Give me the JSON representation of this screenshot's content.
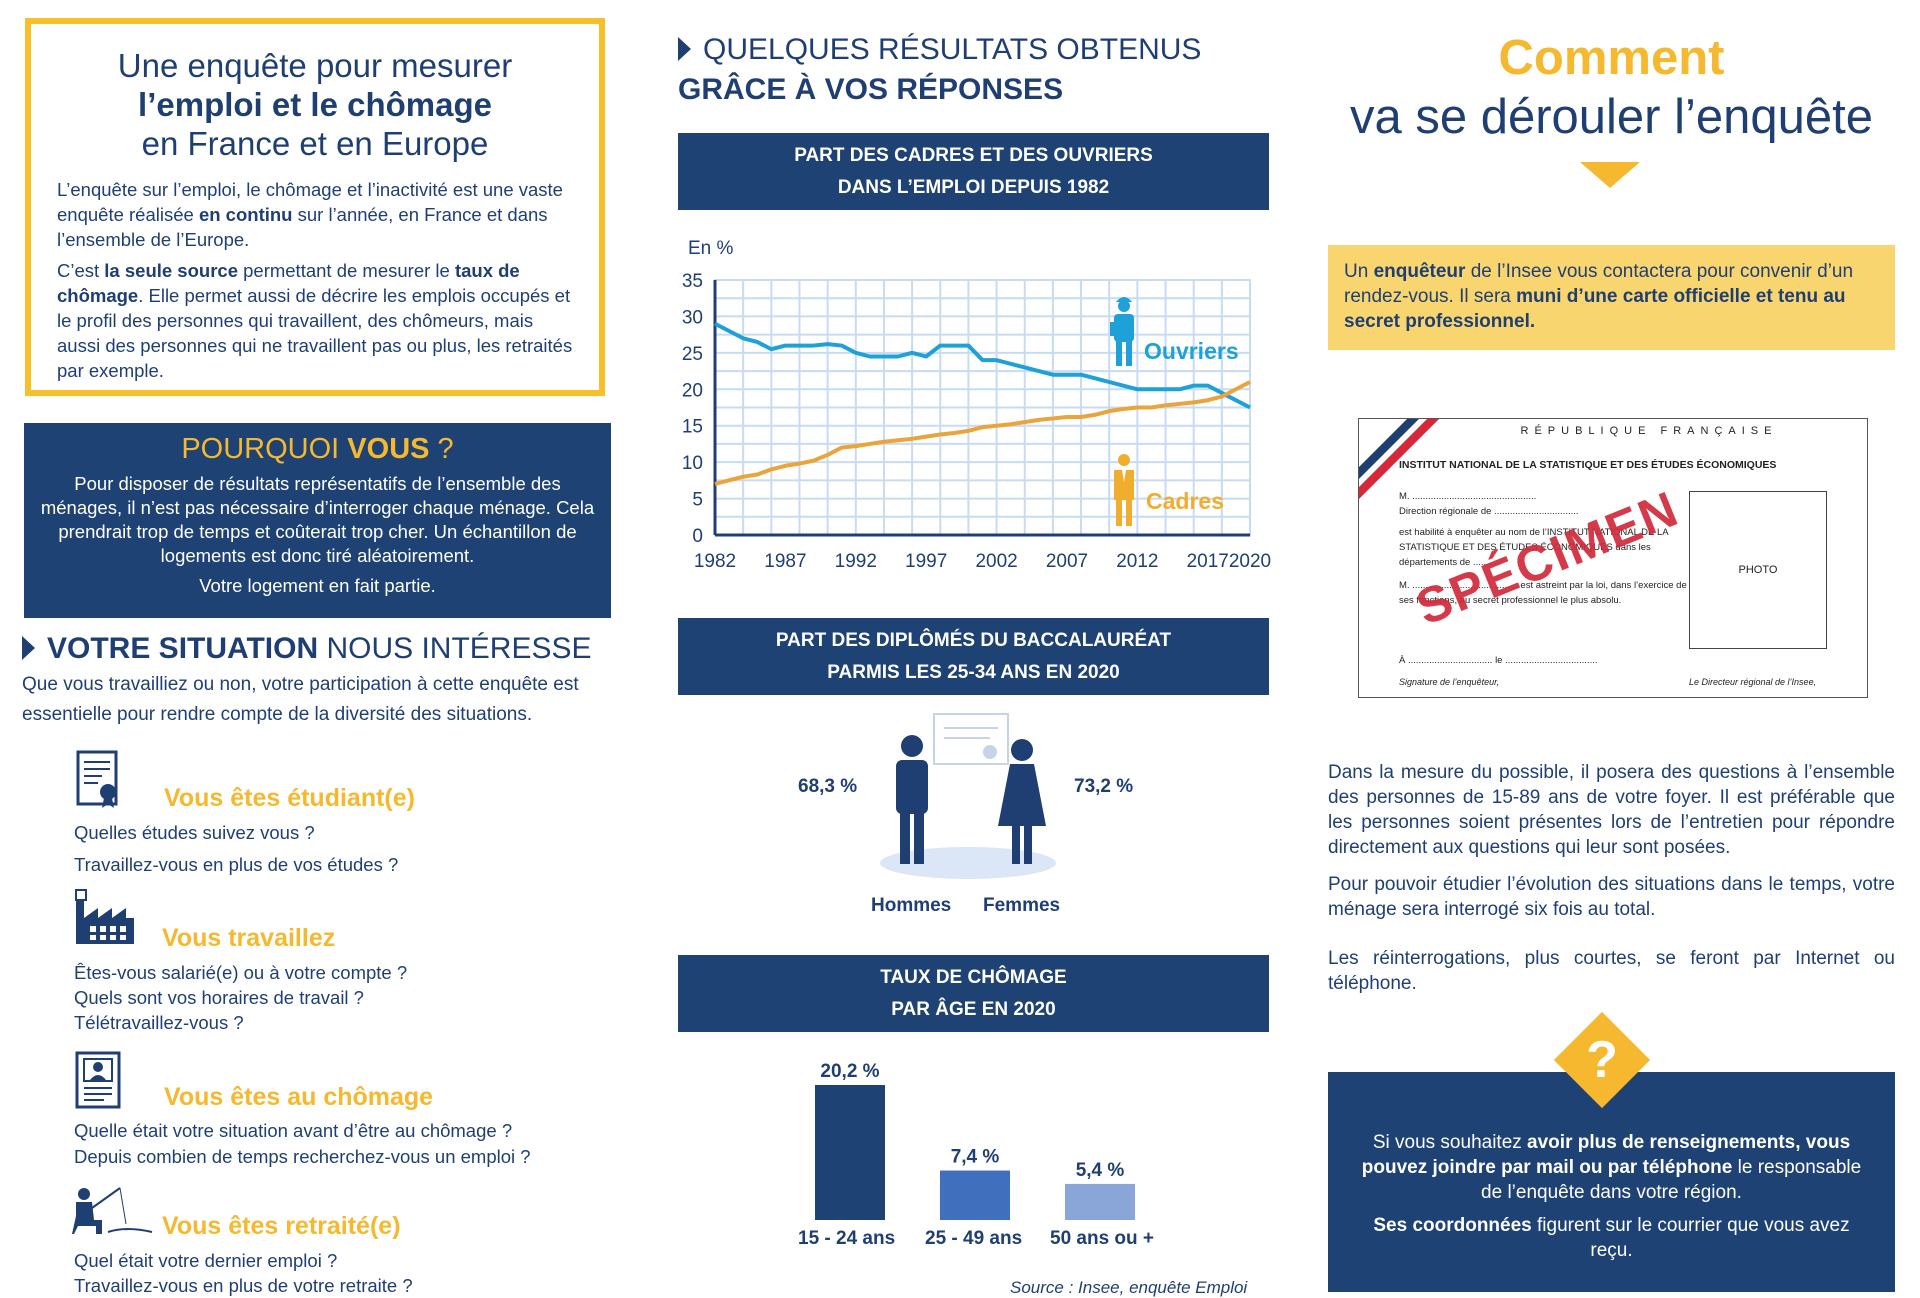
{
  "intro": {
    "title_l1": "Une enquête pour mesurer",
    "title_l2": "l’emploi et le chômage",
    "title_l3": "en France et en Europe",
    "p1_a": "L’enquête sur l’emploi, le chômage et l’inactivité est une vaste enquête réalisée ",
    "p1_b": "en continu",
    "p1_c": " sur l’année, en France et dans l’ensemble de l’Europe.",
    "p2_a": "C’est ",
    "p2_b": "la seule source",
    "p2_c": " permettant de mesurer le ",
    "p2_d": "taux de chômage",
    "p2_e": ". Elle permet aussi de décrire les emplois occupés et le profil des personnes qui travaillent, des chômeurs, mais aussi des personnes qui ne travaillent pas ou plus, les retraités par exemple."
  },
  "pourquoi": {
    "title_a": "POURQUOI ",
    "title_b": "VOUS",
    "title_c": " ?",
    "text": "Pour disposer de résultats représentatifs de l’ensemble des ménages, il n’est pas nécessaire d’interroger chaque ménage. Cela prendrait trop de temps et coûterait trop cher. Un échantillon de logements est donc tiré aléatoirement.",
    "text2": "Votre logement en fait partie."
  },
  "situation": {
    "title_a": "VOTRE SITUATION",
    "title_b": " NOUS INTÉRESSE",
    "text": "Que vous travailliez ou non, votre participation à cette enquête est essentielle pour rendre compte de la diversité des situations.",
    "items": [
      {
        "title": "Vous êtes étudiant(e)",
        "icon": "student-icon",
        "q1": "Quelles études suivez vous ?",
        "q2": "Travaillez-vous en plus de vos études ?",
        "q3": ""
      },
      {
        "title": "Vous travaillez",
        "icon": "factory-icon",
        "q1": "Êtes-vous salarié(e) ou à votre compte ?",
        "q2": "Quels sont vos horaires de travail ?",
        "q3": "Télétravaillez-vous ?"
      },
      {
        "title": "Vous êtes au chômage",
        "icon": "resume-icon",
        "q1": "Quelle était votre situation avant d’être au chômage ?",
        "q2": "Depuis combien de temps recherchez-vous un emploi ?",
        "q3": ""
      },
      {
        "title": "Vous êtes retraité(e)",
        "icon": "fishing-icon",
        "q1": "Quel était votre dernier emploi ?",
        "q2": "Travaillez-vous en plus de votre retraite ?",
        "q3": ""
      }
    ]
  },
  "results": {
    "head_l1": "QUELQUES RÉSULTATS OBTENUS",
    "head_l2": "GRÂCE À VOS RÉPONSES",
    "banner1_l1": "PART DES CADRES ET DES OUVRIERS",
    "banner1_l2": "DANS L’EMPLOI DEPUIS 1982",
    "banner2_l1": "PART DES DIPLÔMÉS DU BACCALAURÉAT",
    "banner2_l2": "PARMIS LES 25-34 ANS EN 2020",
    "banner3_l1": "TAUX DE CHÔMAGE",
    "banner3_l2": "PAR ÂGE EN 2020",
    "source": "Source : Insee, enquête Emploi"
  },
  "chart_data": [
    {
      "type": "line",
      "ylabel": "En %",
      "ylim": [
        0,
        35
      ],
      "yticks": [
        0,
        5,
        10,
        15,
        20,
        25,
        30,
        35
      ],
      "xticks": [
        1982,
        1987,
        1992,
        1997,
        2002,
        2007,
        2012,
        2017,
        2020
      ],
      "x": [
        1982,
        1983,
        1984,
        1985,
        1986,
        1987,
        1988,
        1989,
        1990,
        1991,
        1992,
        1993,
        1994,
        1995,
        1996,
        1997,
        1998,
        1999,
        2000,
        2001,
        2002,
        2003,
        2004,
        2005,
        2006,
        2007,
        2008,
        2009,
        2010,
        2011,
        2012,
        2013,
        2014,
        2015,
        2016,
        2017,
        2018,
        2019,
        2020
      ],
      "series": [
        {
          "name": "Ouvriers",
          "color": "#1ea0d8",
          "values": [
            29,
            28,
            27,
            26.5,
            25.5,
            26,
            26,
            26,
            26.2,
            26,
            25,
            24.5,
            24.5,
            24.5,
            25,
            24.5,
            26,
            26,
            26,
            24,
            24,
            23.5,
            23,
            22.5,
            22,
            22,
            22,
            21.5,
            21,
            20.5,
            20,
            20,
            20,
            20,
            20.5,
            20.5,
            19.5,
            18.5,
            17.5
          ]
        },
        {
          "name": "Cadres",
          "color": "#e9a43b",
          "values": [
            7,
            7.5,
            8,
            8.3,
            9,
            9.5,
            9.8,
            10.2,
            11,
            12,
            12.2,
            12.5,
            12.8,
            13,
            13.2,
            13.5,
            13.8,
            14,
            14.3,
            14.8,
            15,
            15.2,
            15.5,
            15.8,
            16,
            16.2,
            16.2,
            16.5,
            17,
            17.3,
            17.5,
            17.5,
            17.8,
            18,
            18.2,
            18.5,
            19,
            20,
            21
          ]
        }
      ]
    },
    {
      "type": "bar",
      "categories": [
        "Hommes",
        "Femmes"
      ],
      "values": [
        68.3,
        73.2
      ],
      "value_labels": [
        "68,3 %",
        "73,2 %"
      ]
    },
    {
      "type": "bar",
      "categories": [
        "15 - 24 ans",
        "25 - 49 ans",
        "50 ans ou +"
      ],
      "values": [
        20.2,
        7.4,
        5.4
      ],
      "value_labels": [
        "20,2 %",
        "7,4 %",
        "5,4 %"
      ],
      "colors": [
        "#1e4273",
        "#3f6fbd",
        "#8aa6d9"
      ]
    }
  ],
  "comment": {
    "title_l1": "Comment",
    "title_l2": "va se dérouler l’enquête",
    "info_a": "Un ",
    "info_b": "enquêteur",
    "info_c": " de l’Insee vous contactera pour convenir d’un rendez-vous. Il sera ",
    "info_d": "muni d’une carte officielle et tenu au secret professionnel.",
    "card": {
      "republique": "RÉPUBLIQUE FRANÇAISE",
      "institut": "INSTITUT NATIONAL DE LA STATISTIQUE ET DES ÉTUDES ÉCONOMIQUES",
      "m": "M. ...............................................",
      "direction": "Direction régionale de ................................",
      "habilite": "est habilité à enquêter au nom de l’INSTITUT NATIONAL DE LA STATISTIQUE ET DES ÉTUDES ÉCONOMIQUES dans les départements de ..........",
      "astreint": "M. ........................................ est astreint par la loi, dans l’exercice de ses fonctions, au secret professionnel le plus absolu.",
      "a_le": "À ................................ le ...................................",
      "sig_left": "Signature de l’enquêteur,",
      "sig_right": "Le Directeur régional de l’Insee,",
      "photo": "PHOTO",
      "stamp": "SPÉCIMEN"
    },
    "p1": "Dans la mesure du possible, il posera des questions à l’ensemble des personnes de 15-89 ans de votre foyer. Il est préférable que les personnes soient présentes lors de l’entretien pour répondre directement aux questions qui leur sont posées.",
    "p2": "Pour pouvoir étudier l’évolution des situations dans le temps, votre ménage sera interrogé six fois au total.",
    "p3": "Les réinterrogations, plus courtes, se feront par Internet ou téléphone.",
    "contact_a": "Si vous souhaitez ",
    "contact_b": "avoir plus de renseignements, vous pouvez joindre par mail ou par téléphone",
    "contact_c": " le responsable de l’enquête dans votre région.",
    "contact_d": "Ses coordonnées",
    "contact_e": " figurent sur le courrier que vous avez reçu.",
    "question_mark": "?"
  }
}
